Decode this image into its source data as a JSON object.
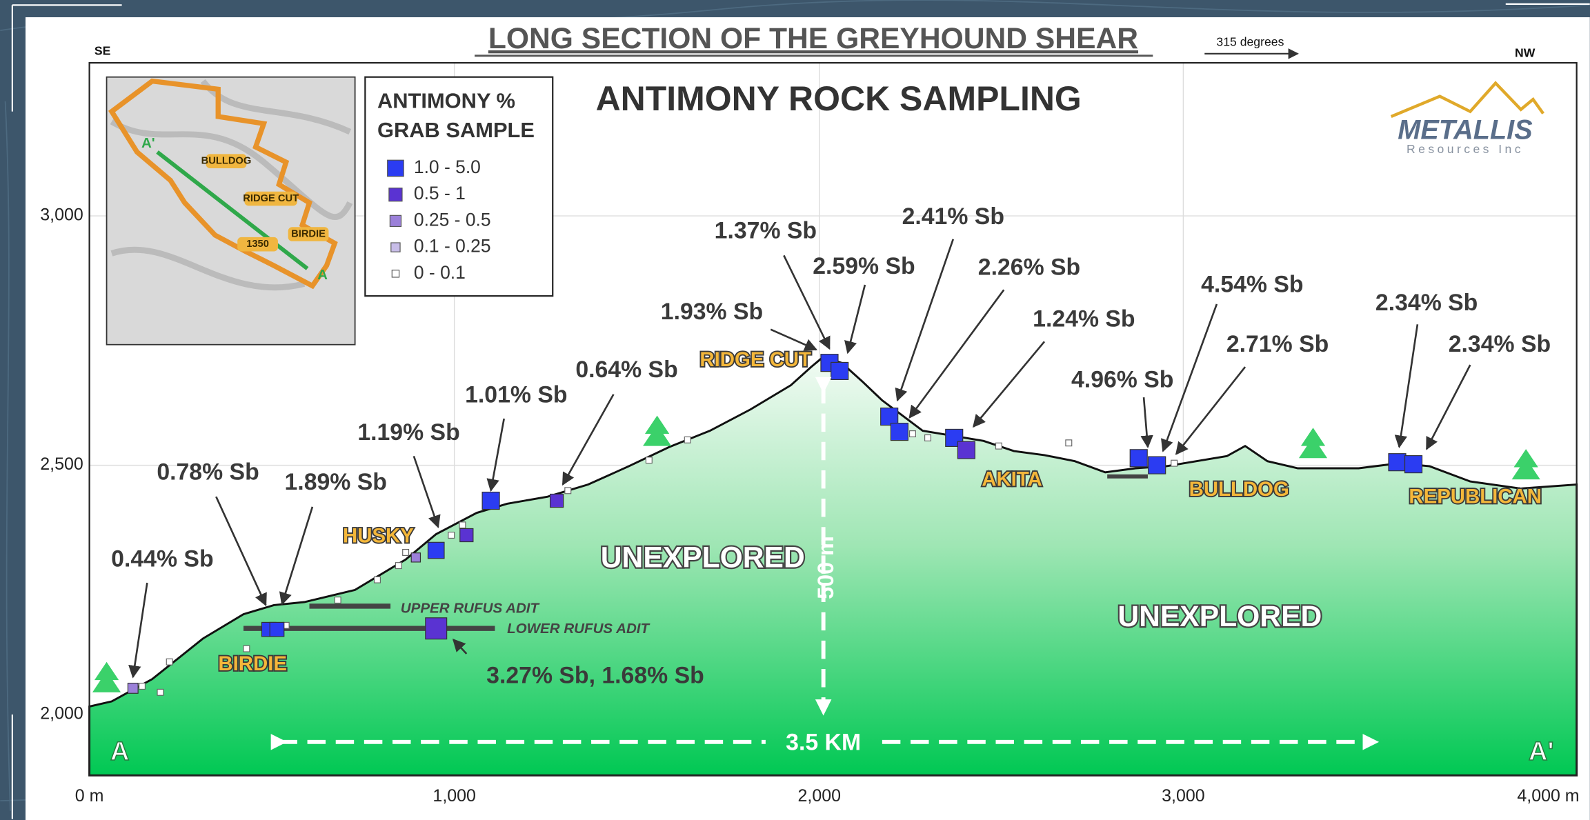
{
  "title": "LONG SECTION OF THE GREYHOUND SHEAR",
  "direction": {
    "left": "SE",
    "right": "NW",
    "bearing": "315 degrees"
  },
  "heading": "ANTIMONY ROCK SAMPLING",
  "legend": {
    "title": [
      "ANTIMONY %",
      "GRAB SAMPLE"
    ],
    "items": [
      "1.0 - 5.0",
      "0.5 - 1",
      "0.25 - 0.5",
      "0.1 - 0.25",
      "0 - 0.1"
    ]
  },
  "inset": {
    "labels": [
      "A'",
      "BULLDOG",
      "RIDGE CUT",
      "BIRDIE",
      "1350",
      "A"
    ]
  },
  "logo": {
    "name": "METALLIS",
    "sub": "Resources Inc"
  },
  "axes": {
    "x": [
      "0 m",
      "1,000",
      "2,000",
      "3,000",
      "4,000 m"
    ],
    "y": [
      "3,000",
      "2,500",
      "2,000"
    ]
  },
  "places": [
    "BIRDIE",
    "HUSKY",
    "RIDGE CUT",
    "AKITA",
    "BULLDOG",
    "REPUBLICAN"
  ],
  "unexplored": [
    "UNEXPLORED",
    "UNEXPLORED"
  ],
  "dimensions": {
    "vertical": "500 m",
    "horizontal": "3.5 KM"
  },
  "adits": [
    "UPPER RUFUS ADIT",
    "LOWER RUFUS ADIT"
  ],
  "samples": [
    "0.44% Sb",
    "0.78% Sb",
    "1.89% Sb",
    "1.19% Sb",
    "1.01% Sb",
    "0.64% Sb",
    "1.93% Sb",
    "1.37% Sb",
    "2.59% Sb",
    "2.41% Sb",
    "2.26% Sb",
    "1.24% Sb",
    "4.96% Sb",
    "4.54% Sb",
    "2.71% Sb",
    "2.34% Sb",
    "2.34% Sb",
    "3.27% Sb, 1.68% Sb"
  ],
  "ends": [
    "A",
    "A'"
  ]
}
